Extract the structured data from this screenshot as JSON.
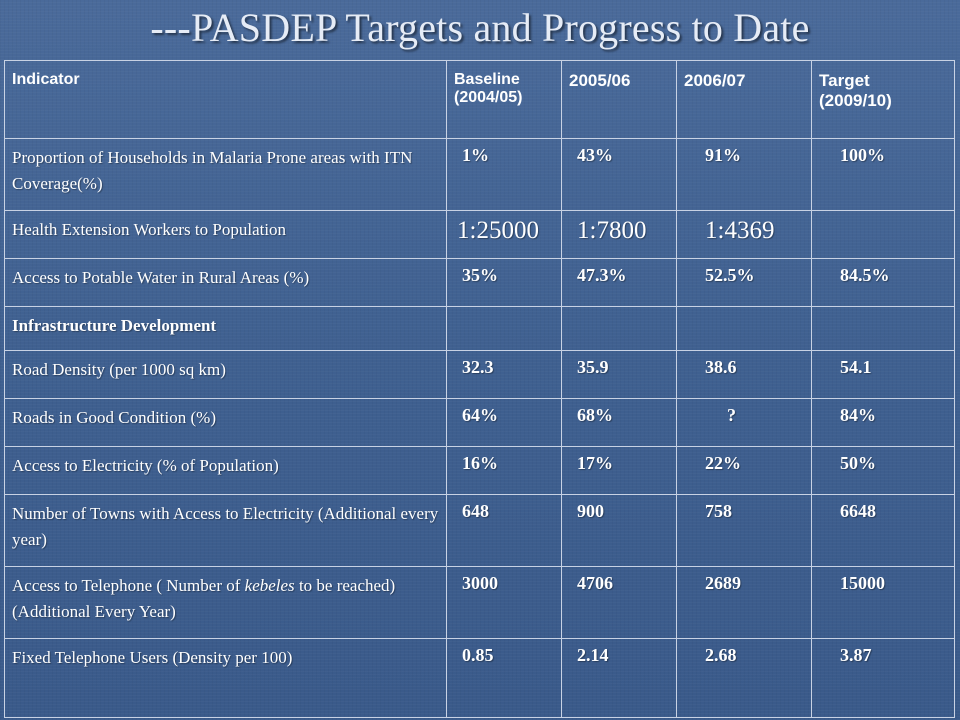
{
  "title": "---PASDEP Targets and Progress to Date",
  "headers": {
    "indicator": "Indicator",
    "baseline_line1": "Baseline",
    "baseline_line2": "(2004/05)",
    "y2005": "2005/06",
    "y2006": "2006/07",
    "target_line1": "Target",
    "target_line2": "(2009/10)"
  },
  "rows": [
    {
      "indicator": "Proportion of Households in Malaria Prone areas with ITN Coverage(%)",
      "baseline": "1%",
      "y2005": "43%",
      "y2006": "91%",
      "target": "100%"
    },
    {
      "indicator": "Health Extension Workers to Population",
      "baseline": "1:25000",
      "y2005": "1:7800",
      "y2006": "1:4369",
      "target": ""
    },
    {
      "indicator": "Access to Potable Water in Rural Areas (%)",
      "baseline": "35%",
      "y2005": "47.3%",
      "y2006": "52.5%",
      "target": "84.5%"
    },
    {
      "indicator": "Infrastructure Development",
      "baseline": "",
      "y2005": "",
      "y2006": "",
      "target": ""
    },
    {
      "indicator": "Road Density (per 1000 sq km)",
      "baseline": "32.3",
      "y2005": "35.9",
      "y2006": "38.6",
      "target": "54.1"
    },
    {
      "indicator": "Roads in Good Condition (%)",
      "baseline": "64%",
      "y2005": "68%",
      "y2006": "?",
      "target": "84%"
    },
    {
      "indicator": "Access to Electricity (% of Population)",
      "baseline": "16%",
      "y2005": "17%",
      "y2006": "22%",
      "target": "50%"
    },
    {
      "indicator": "Number of  Towns with Access to Electricity (Additional every year)",
      "baseline": "648",
      "y2005": "900",
      "y2006": "758",
      "target": "6648"
    },
    {
      "indicator_pre": "Access to Telephone ( Number of ",
      "indicator_em": "kebeles",
      "indicator_post": " to be reached) (Additional Every Year)",
      "baseline": "3000",
      "y2005": "4706",
      "y2006": "2689",
      "target": "15000"
    },
    {
      "indicator": "Fixed Telephone Users (Density per 100)",
      "baseline": "0.85",
      "y2005": "2.14",
      "y2006": "2.68",
      "target": "3.87"
    }
  ]
}
